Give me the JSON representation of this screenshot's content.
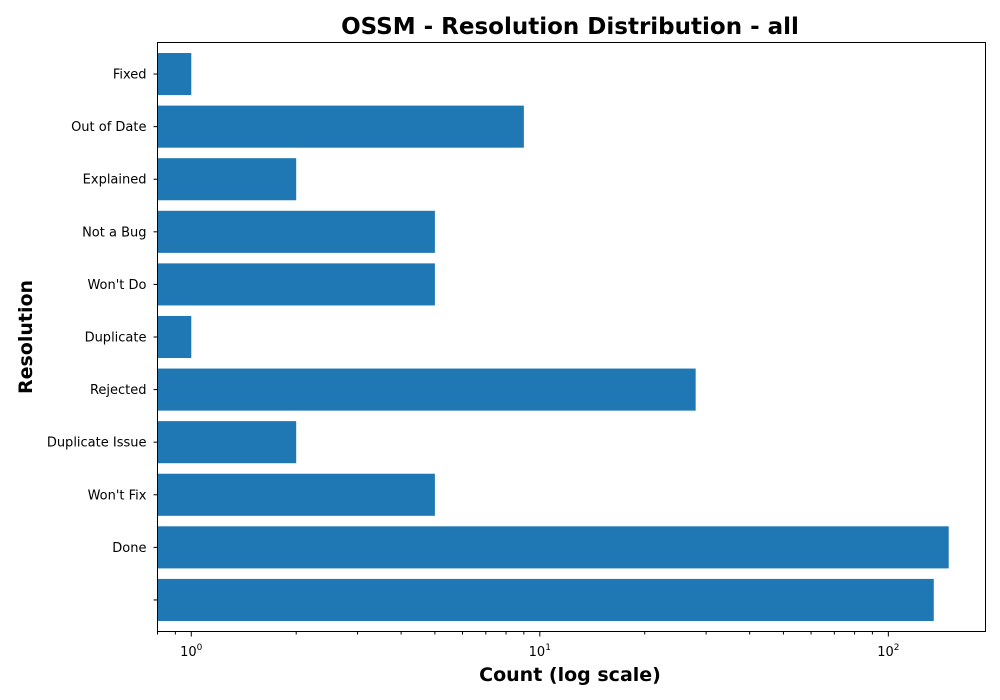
{
  "chart_data": {
    "type": "bar",
    "orientation": "horizontal",
    "title": "OSSM - Resolution Distribution - all",
    "xlabel": "Count (log scale)",
    "ylabel": "Resolution",
    "x_scale": "log",
    "xlim": [
      0.8,
      190
    ],
    "x_ticks": [
      {
        "value": 1,
        "base": "10",
        "exp": "0"
      },
      {
        "value": 10,
        "base": "10",
        "exp": "1"
      },
      {
        "value": 100,
        "base": "10",
        "exp": "2"
      }
    ],
    "categories": [
      "",
      "Done",
      "Won't Fix",
      "Duplicate Issue",
      "Rejected",
      "Duplicate",
      "Won't Do",
      "Not a Bug",
      "Explained",
      "Out of Date",
      "Fixed"
    ],
    "values": [
      135,
      149,
      5,
      2,
      28,
      1,
      5,
      5,
      2,
      9,
      1
    ],
    "bar_color": "#1f77b4",
    "grid": false,
    "legend": "none"
  }
}
